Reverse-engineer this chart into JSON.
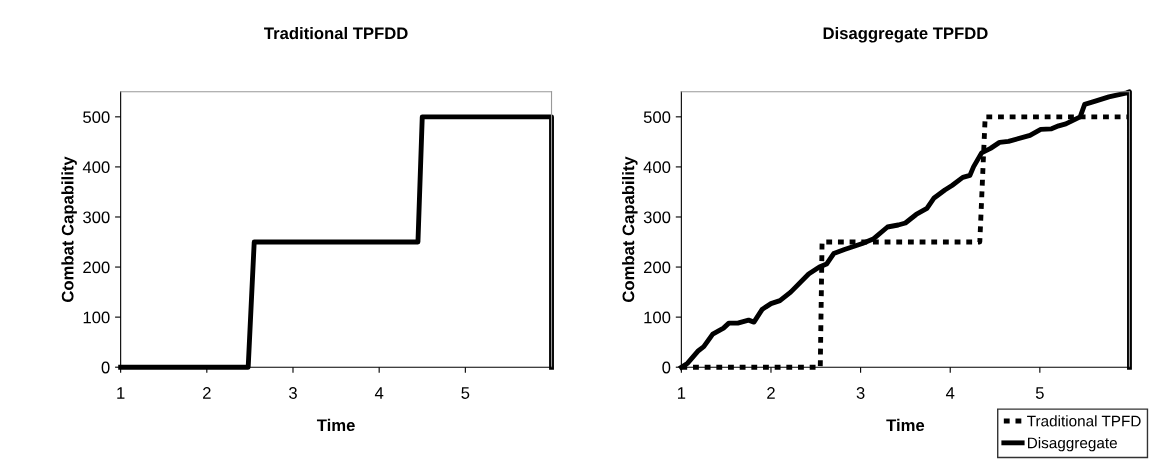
{
  "chart_data": [
    {
      "type": "line",
      "title": "Traditional TPFDD",
      "xlabel": "Time",
      "ylabel": "Combat Capability",
      "xlim": [
        1,
        6
      ],
      "xticks": [
        1,
        2,
        3,
        4,
        5
      ],
      "ylim": [
        0,
        550
      ],
      "yticks": [
        0,
        100,
        200,
        300,
        400,
        500
      ],
      "grid": false,
      "marker": "none",
      "series": [
        {
          "color": "#000000",
          "line_style": "solid",
          "x": [
            1,
            2.48,
            2.55,
            4.45,
            4.5,
            6,
            6
          ],
          "values": [
            0,
            0,
            250,
            250,
            500,
            500,
            0
          ]
        }
      ]
    },
    {
      "type": "line",
      "title": "Disaggregate TPFDD",
      "xlabel": "Time",
      "ylabel": "Combat Capability",
      "xlim": [
        1,
        6
      ],
      "xticks": [
        1,
        2,
        3,
        4,
        5
      ],
      "ylim": [
        0,
        550
      ],
      "yticks": [
        0,
        100,
        200,
        300,
        400,
        500
      ],
      "grid": false,
      "legend": "bottom right",
      "marker": "none",
      "series": [
        {
          "name": "Traditional TPFD",
          "color": "#000000",
          "line_style": "dotted",
          "x": [
            1,
            2.55,
            2.57,
            4.33,
            4.39,
            6
          ],
          "values": [
            0,
            0,
            250,
            250,
            500,
            500
          ]
        },
        {
          "name": "Disaggregate",
          "color": "#000000",
          "line_style": "solid",
          "x": [
            1,
            1.07,
            1.19,
            1.25,
            1.35,
            1.47,
            1.53,
            1.63,
            1.75,
            1.81,
            1.9,
            1.94,
            2.0,
            2.1,
            2.22,
            2.42,
            2.54,
            2.62,
            2.7,
            2.82,
            3.02,
            3.14,
            3.3,
            3.42,
            3.5,
            3.62,
            3.74,
            3.82,
            3.94,
            4.02,
            4.14,
            4.22,
            4.26,
            4.35,
            4.45,
            4.55,
            4.65,
            4.89,
            5.01,
            5.13,
            5.21,
            5.29,
            5.45,
            5.5,
            5.61,
            5.77,
            5.97,
            6,
            6
          ],
          "values": [
            0,
            8,
            33,
            41,
            66,
            78,
            88,
            88,
            94,
            90,
            115,
            120,
            127,
            133,
            150,
            186,
            200,
            206,
            227,
            235,
            247,
            256,
            280,
            284,
            288,
            305,
            317,
            338,
            354,
            363,
            379,
            383,
            400,
            428,
            437,
            449,
            451,
            463,
            475,
            476,
            482,
            486,
            500,
            525,
            531,
            540,
            548,
            550,
            0
          ]
        }
      ]
    }
  ]
}
